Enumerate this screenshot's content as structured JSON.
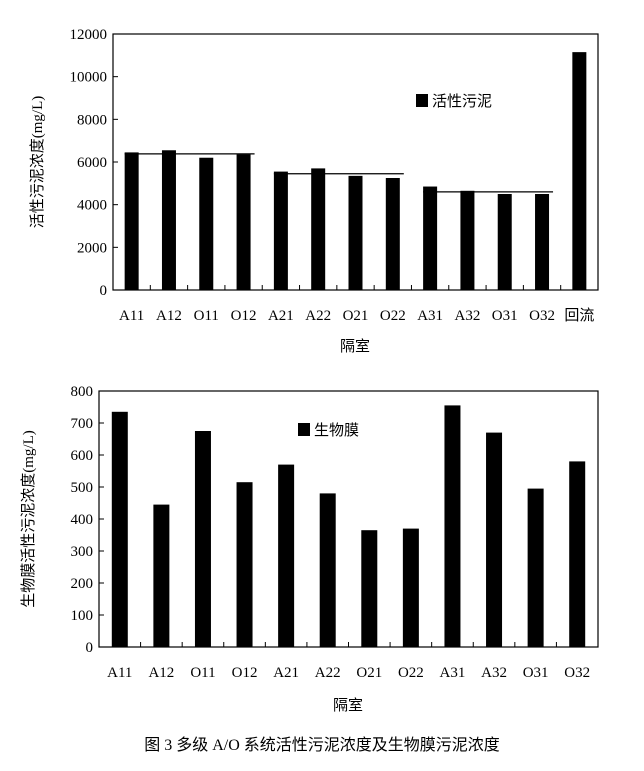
{
  "chart_data": [
    {
      "type": "bar",
      "categories": [
        "A11",
        "A12",
        "O11",
        "O12",
        "A21",
        "A22",
        "O21",
        "O22",
        "A31",
        "A32",
        "O31",
        "O32",
        "回流"
      ],
      "series": [
        {
          "name": "活性污泥",
          "values": [
            6450,
            6550,
            6200,
            6350,
            5550,
            5700,
            5350,
            5250,
            4850,
            4650,
            4500,
            4500,
            11150
          ]
        }
      ],
      "reference_lines": [
        {
          "categories": [
            "A11",
            "O12"
          ],
          "value": 6380
        },
        {
          "categories": [
            "A21",
            "O22"
          ],
          "value": 5450
        },
        {
          "categories": [
            "A31",
            "O32"
          ],
          "value": 4600
        }
      ],
      "xlabel": "隔室",
      "ylabel": "活性污泥浓度(mg/L)",
      "ylim": [
        0,
        12000
      ],
      "yticks": [
        0,
        2000,
        4000,
        6000,
        8000,
        10000,
        12000
      ],
      "legend": "top-right",
      "grid": false
    },
    {
      "type": "bar",
      "categories": [
        "A11",
        "A12",
        "O11",
        "O12",
        "A21",
        "A22",
        "O21",
        "O22",
        "A31",
        "A32",
        "O31",
        "O32"
      ],
      "series": [
        {
          "name": "生物膜",
          "values": [
            735,
            445,
            675,
            515,
            570,
            480,
            365,
            370,
            755,
            670,
            495,
            580
          ]
        }
      ],
      "xlabel": "隔室",
      "ylabel": "生物膜活性污泥浓度(mg/L)",
      "ylim": [
        0,
        800
      ],
      "yticks": [
        0,
        100,
        200,
        300,
        400,
        500,
        600,
        700,
        800
      ],
      "legend": "top-center",
      "grid": false
    }
  ],
  "caption": "图 3   多级 A/O 系统活性污泥浓度及生物膜污泥浓度",
  "colors": {
    "bar": "#000000",
    "axis": "#000000",
    "background": "#ffffff"
  }
}
